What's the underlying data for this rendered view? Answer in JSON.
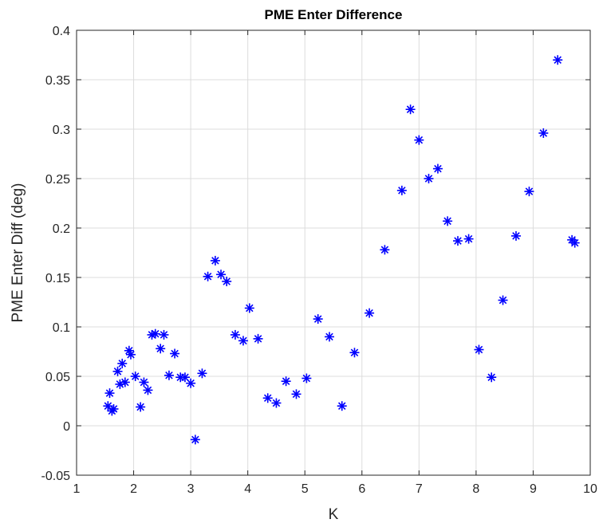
{
  "chart_data": {
    "type": "scatter",
    "title": "PME Enter Difference",
    "xlabel": "K",
    "ylabel": "PME Enter Diff (deg)",
    "xlim": [
      1,
      10
    ],
    "ylim": [
      -0.05,
      0.4
    ],
    "xticks": [
      1,
      2,
      3,
      4,
      5,
      6,
      7,
      8,
      9,
      10
    ],
    "xtick_labels": [
      "1",
      "2",
      "3",
      "4",
      "5",
      "6",
      "7",
      "8",
      "9",
      "10"
    ],
    "yticks": [
      -0.05,
      0,
      0.05,
      0.1,
      0.15,
      0.2,
      0.25,
      0.3,
      0.35,
      0.4
    ],
    "ytick_labels": [
      "-0.05",
      "0",
      "0.05",
      "0.1",
      "0.15",
      "0.2",
      "0.25",
      "0.3",
      "0.35",
      "0.4"
    ],
    "grid": true,
    "marker": "asterisk",
    "marker_color": "#0000ff",
    "points": [
      [
        1.55,
        0.02
      ],
      [
        1.58,
        0.033
      ],
      [
        1.62,
        0.015
      ],
      [
        1.65,
        0.017
      ],
      [
        1.72,
        0.055
      ],
      [
        1.76,
        0.042
      ],
      [
        1.8,
        0.063
      ],
      [
        1.85,
        0.044
      ],
      [
        1.92,
        0.076
      ],
      [
        1.95,
        0.072
      ],
      [
        2.03,
        0.05
      ],
      [
        2.12,
        0.019
      ],
      [
        2.18,
        0.044
      ],
      [
        2.25,
        0.036
      ],
      [
        2.32,
        0.092
      ],
      [
        2.38,
        0.093
      ],
      [
        2.47,
        0.078
      ],
      [
        2.53,
        0.092
      ],
      [
        2.62,
        0.051
      ],
      [
        2.72,
        0.073
      ],
      [
        2.82,
        0.049
      ],
      [
        2.9,
        0.049
      ],
      [
        3.0,
        0.043
      ],
      [
        3.08,
        -0.014
      ],
      [
        3.2,
        0.053
      ],
      [
        3.3,
        0.151
      ],
      [
        3.43,
        0.167
      ],
      [
        3.53,
        0.153
      ],
      [
        3.63,
        0.146
      ],
      [
        3.78,
        0.092
      ],
      [
        3.92,
        0.086
      ],
      [
        4.03,
        0.119
      ],
      [
        4.18,
        0.088
      ],
      [
        4.35,
        0.028
      ],
      [
        4.5,
        0.023
      ],
      [
        4.67,
        0.045
      ],
      [
        4.85,
        0.032
      ],
      [
        5.03,
        0.048
      ],
      [
        5.23,
        0.108
      ],
      [
        5.43,
        0.09
      ],
      [
        5.65,
        0.02
      ],
      [
        5.87,
        0.074
      ],
      [
        6.13,
        0.114
      ],
      [
        6.4,
        0.178
      ],
      [
        6.7,
        0.238
      ],
      [
        6.85,
        0.32
      ],
      [
        7.0,
        0.289
      ],
      [
        7.17,
        0.25
      ],
      [
        7.33,
        0.26
      ],
      [
        7.5,
        0.207
      ],
      [
        7.68,
        0.187
      ],
      [
        7.87,
        0.189
      ],
      [
        8.05,
        0.077
      ],
      [
        8.27,
        0.049
      ],
      [
        8.47,
        0.127
      ],
      [
        8.7,
        0.192
      ],
      [
        8.93,
        0.237
      ],
      [
        9.18,
        0.296
      ],
      [
        9.43,
        0.37
      ],
      [
        9.68,
        0.188
      ],
      [
        9.73,
        0.185
      ]
    ]
  }
}
